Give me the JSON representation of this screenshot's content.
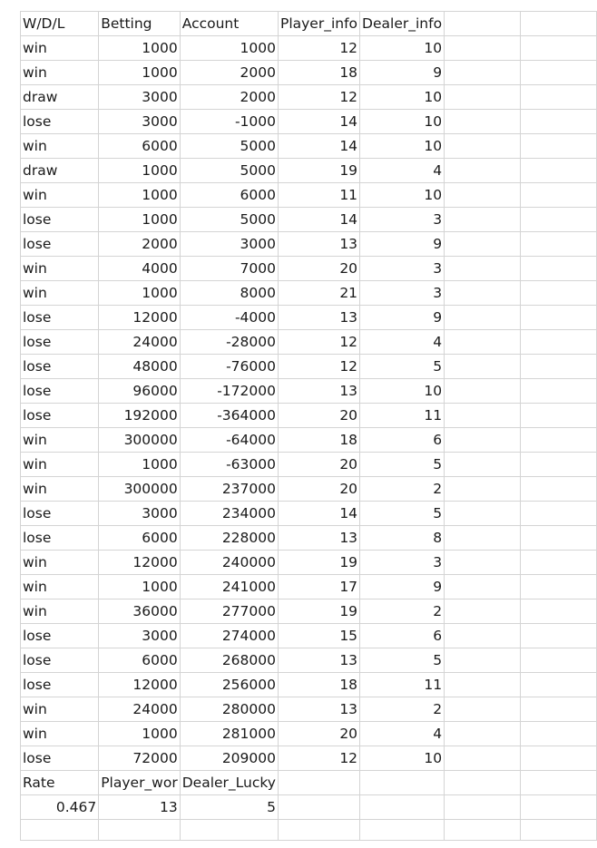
{
  "headers": [
    "W/D/L",
    "Betting",
    "Account",
    "Player_info",
    "Dealer_info"
  ],
  "rows": [
    [
      "win",
      1000,
      1000,
      12,
      10
    ],
    [
      "win",
      1000,
      2000,
      18,
      9
    ],
    [
      "draw",
      3000,
      2000,
      12,
      10
    ],
    [
      "lose",
      3000,
      -1000,
      14,
      10
    ],
    [
      "win",
      6000,
      5000,
      14,
      10
    ],
    [
      "draw",
      1000,
      5000,
      19,
      4
    ],
    [
      "win",
      1000,
      6000,
      11,
      10
    ],
    [
      "lose",
      1000,
      5000,
      14,
      3
    ],
    [
      "lose",
      2000,
      3000,
      13,
      9
    ],
    [
      "win",
      4000,
      7000,
      20,
      3
    ],
    [
      "win",
      1000,
      8000,
      21,
      3
    ],
    [
      "lose",
      12000,
      -4000,
      13,
      9
    ],
    [
      "lose",
      24000,
      -28000,
      12,
      4
    ],
    [
      "lose",
      48000,
      -76000,
      12,
      5
    ],
    [
      "lose",
      96000,
      -172000,
      13,
      10
    ],
    [
      "lose",
      192000,
      -364000,
      20,
      11
    ],
    [
      "win",
      300000,
      -64000,
      18,
      6
    ],
    [
      "win",
      1000,
      -63000,
      20,
      5
    ],
    [
      "win",
      300000,
      237000,
      20,
      2
    ],
    [
      "lose",
      3000,
      234000,
      14,
      5
    ],
    [
      "lose",
      6000,
      228000,
      13,
      8
    ],
    [
      "win",
      12000,
      240000,
      19,
      3
    ],
    [
      "win",
      1000,
      241000,
      17,
      9
    ],
    [
      "win",
      36000,
      277000,
      19,
      2
    ],
    [
      "lose",
      3000,
      274000,
      15,
      6
    ],
    [
      "lose",
      6000,
      268000,
      13,
      5
    ],
    [
      "lose",
      12000,
      256000,
      18,
      11
    ],
    [
      "win",
      24000,
      280000,
      13,
      2
    ],
    [
      "win",
      1000,
      281000,
      20,
      4
    ],
    [
      "lose",
      72000,
      209000,
      12,
      10
    ]
  ],
  "summary_labels": [
    "Rate",
    "Player_wor",
    "Dealer_Lucky"
  ],
  "summary_values": [
    0.467,
    13,
    5
  ]
}
